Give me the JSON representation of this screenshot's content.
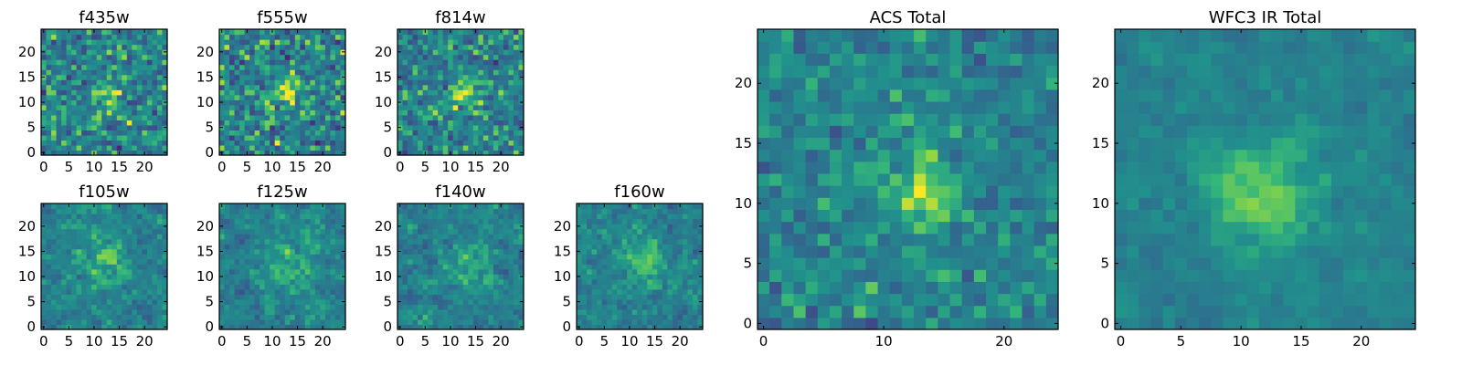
{
  "chart_data": [
    {
      "type": "heatmap",
      "title": "f435w",
      "xticks": [
        0,
        5,
        10,
        15,
        20
      ],
      "yticks": [
        0,
        5,
        10,
        15,
        20
      ],
      "xlim": [
        -0.5,
        24.5
      ],
      "ylim": [
        -0.5,
        24.5
      ],
      "grid": false,
      "colormap": "viridis",
      "peak": [
        13,
        12
      ],
      "peak_sigma": 2.0,
      "peak_amp": 0.28,
      "noise": 0.28,
      "seed": 11
    },
    {
      "type": "heatmap",
      "title": "f555w",
      "xticks": [
        0,
        5,
        10,
        15,
        20
      ],
      "yticks": [
        0,
        5,
        10,
        15,
        20
      ],
      "xlim": [
        -0.5,
        24.5
      ],
      "ylim": [
        -0.5,
        24.5
      ],
      "grid": false,
      "colormap": "viridis",
      "peak": [
        13,
        12
      ],
      "peak_sigma": 2.2,
      "peak_amp": 0.32,
      "noise": 0.3,
      "seed": 23
    },
    {
      "type": "heatmap",
      "title": "f814w",
      "xticks": [
        0,
        5,
        10,
        15,
        20
      ],
      "yticks": [
        0,
        5,
        10,
        15,
        20
      ],
      "xlim": [
        -0.5,
        24.5
      ],
      "ylim": [
        -0.5,
        24.5
      ],
      "grid": false,
      "colormap": "viridis",
      "peak": [
        13,
        12
      ],
      "peak_sigma": 2.2,
      "peak_amp": 0.3,
      "noise": 0.26,
      "seed": 37
    },
    {
      "type": "heatmap",
      "title": "f105w",
      "xticks": [
        0,
        5,
        10,
        15,
        20
      ],
      "yticks": [
        0,
        5,
        10,
        15,
        20
      ],
      "xlim": [
        -0.5,
        24.5
      ],
      "ylim": [
        -0.5,
        24.5
      ],
      "grid": false,
      "colormap": "viridis",
      "peak": [
        12,
        13
      ],
      "peak_sigma": 3.0,
      "peak_amp": 0.22,
      "noise": 0.24,
      "seed": 41,
      "smooth": true
    },
    {
      "type": "heatmap",
      "title": "f125w",
      "xticks": [
        0,
        5,
        10,
        15,
        20
      ],
      "yticks": [
        0,
        5,
        10,
        15,
        20
      ],
      "xlim": [
        -0.5,
        24.5
      ],
      "ylim": [
        -0.5,
        24.5
      ],
      "grid": false,
      "colormap": "viridis",
      "peak": [
        13,
        12
      ],
      "peak_sigma": 3.0,
      "peak_amp": 0.22,
      "noise": 0.24,
      "seed": 53,
      "smooth": true
    },
    {
      "type": "heatmap",
      "title": "f140w",
      "xticks": [
        0,
        5,
        10,
        15,
        20
      ],
      "yticks": [
        0,
        5,
        10,
        15,
        20
      ],
      "xlim": [
        -0.5,
        24.5
      ],
      "ylim": [
        -0.5,
        24.5
      ],
      "grid": false,
      "colormap": "viridis",
      "peak": [
        13,
        13
      ],
      "peak_sigma": 3.0,
      "peak_amp": 0.2,
      "noise": 0.24,
      "seed": 67,
      "smooth": true
    },
    {
      "type": "heatmap",
      "title": "f160w",
      "xticks": [
        0,
        5,
        10,
        15,
        20
      ],
      "yticks": [
        0,
        5,
        10,
        15,
        20
      ],
      "xlim": [
        -0.5,
        24.5
      ],
      "ylim": [
        -0.5,
        24.5
      ],
      "grid": false,
      "colormap": "viridis",
      "peak": [
        13,
        13
      ],
      "peak_sigma": 3.0,
      "peak_amp": 0.22,
      "noise": 0.24,
      "seed": 79,
      "smooth": true
    },
    {
      "type": "heatmap",
      "title": "ACS Total",
      "xticks": [
        0,
        10,
        20
      ],
      "yticks": [
        0,
        5,
        10,
        15,
        20
      ],
      "xlim": [
        -0.5,
        24.5
      ],
      "ylim": [
        -0.5,
        24.5
      ],
      "grid": false,
      "colormap": "viridis",
      "peak": [
        13,
        11
      ],
      "peak_sigma": 2.2,
      "peak_amp": 0.32,
      "noise": 0.18,
      "seed": 97
    },
    {
      "type": "heatmap",
      "title": "WFC3 IR Total",
      "xticks": [
        0,
        5,
        10,
        15,
        20
      ],
      "yticks": [
        0,
        5,
        10,
        15,
        20
      ],
      "xlim": [
        -0.5,
        24.5
      ],
      "ylim": [
        -0.5,
        24.5
      ],
      "grid": false,
      "colormap": "viridis",
      "peak": [
        12,
        11
      ],
      "peak_sigma": 3.2,
      "peak_amp": 0.3,
      "noise": 0.14,
      "seed": 113,
      "smooth": true
    }
  ]
}
